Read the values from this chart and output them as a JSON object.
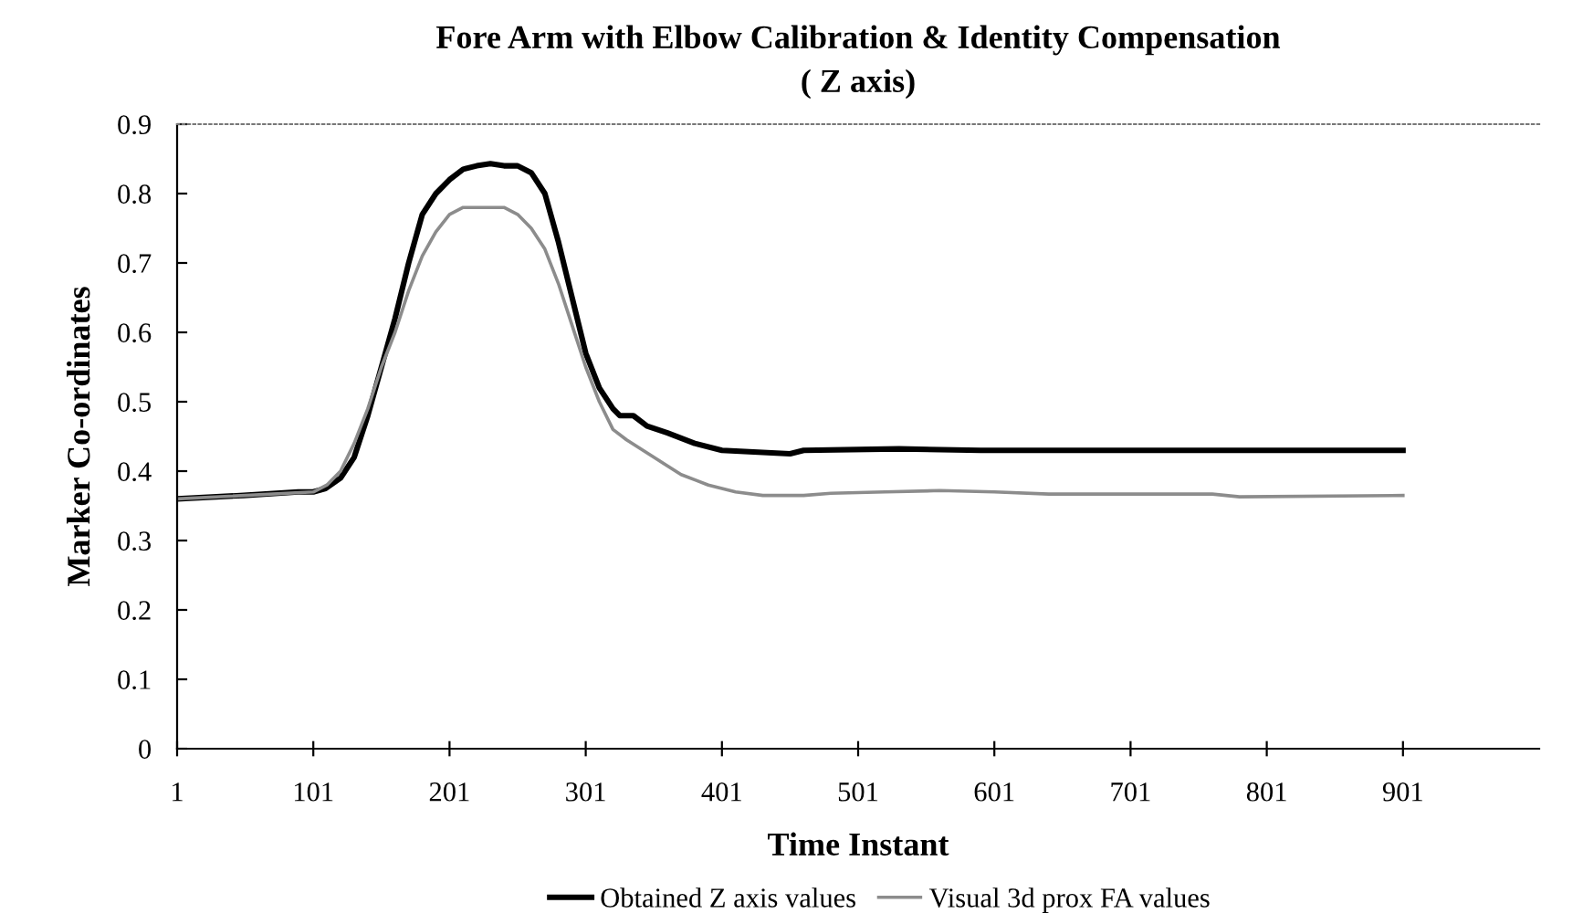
{
  "chart_data": {
    "type": "line",
    "title": "Fore Arm with Elbow Calibration & Identity Compensation",
    "subtitle": "( Z axis)",
    "xlabel": "Time Instant",
    "ylabel": "Marker Co-ordinates",
    "xlim": [
      1,
      1001
    ],
    "xticks": [
      1,
      101,
      201,
      301,
      401,
      501,
      601,
      701,
      801,
      901
    ],
    "ylim": [
      0,
      0.9
    ],
    "yticks": [
      0,
      0.1,
      0.2,
      0.3,
      0.4,
      0.5,
      0.6,
      0.7,
      0.8,
      0.9
    ],
    "grid": false,
    "legend": "bottom",
    "marker": "none",
    "series": [
      {
        "name": "Obtained Z axis values",
        "color": "#000000",
        "x": [
          1,
          50,
          90,
          101,
          110,
          121,
          131,
          141,
          151,
          161,
          171,
          181,
          191,
          201,
          211,
          221,
          231,
          241,
          251,
          261,
          271,
          281,
          291,
          301,
          311,
          321,
          326,
          336,
          346,
          361,
          381,
          401,
          421,
          451,
          461,
          531,
          591,
          701,
          801,
          901
        ],
        "values": [
          0.36,
          0.365,
          0.37,
          0.37,
          0.375,
          0.39,
          0.42,
          0.48,
          0.55,
          0.62,
          0.7,
          0.77,
          0.8,
          0.82,
          0.835,
          0.84,
          0.843,
          0.84,
          0.84,
          0.83,
          0.8,
          0.73,
          0.65,
          0.57,
          0.52,
          0.49,
          0.48,
          0.48,
          0.465,
          0.455,
          0.44,
          0.43,
          0.428,
          0.425,
          0.43,
          0.432,
          0.43,
          0.43,
          0.43,
          0.43
        ]
      },
      {
        "name": "Visual 3d prox FA values",
        "color": "#8c8c8c",
        "x": [
          1,
          101,
          111,
          121,
          131,
          141,
          151,
          161,
          171,
          181,
          191,
          201,
          211,
          221,
          241,
          251,
          261,
          271,
          281,
          291,
          301,
          311,
          321,
          331,
          351,
          371,
          391,
          411,
          431,
          461,
          481,
          521,
          561,
          601,
          641,
          761,
          781,
          901
        ],
        "values": [
          0.36,
          0.37,
          0.38,
          0.4,
          0.44,
          0.49,
          0.55,
          0.6,
          0.66,
          0.71,
          0.745,
          0.77,
          0.78,
          0.78,
          0.78,
          0.77,
          0.75,
          0.72,
          0.67,
          0.61,
          0.55,
          0.5,
          0.46,
          0.445,
          0.42,
          0.395,
          0.38,
          0.37,
          0.365,
          0.365,
          0.368,
          0.37,
          0.372,
          0.37,
          0.367,
          0.367,
          0.363,
          0.365
        ]
      }
    ]
  }
}
